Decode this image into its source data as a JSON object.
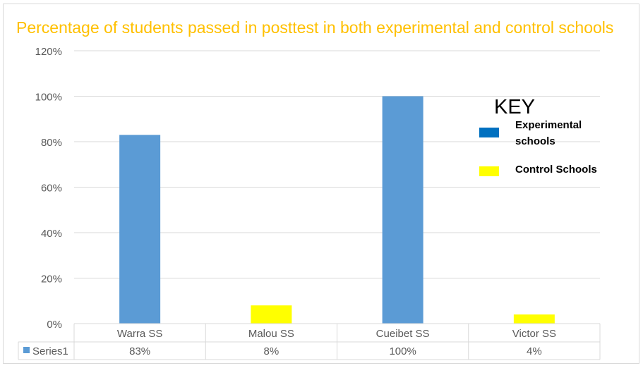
{
  "chart_data": {
    "type": "bar",
    "title": "Percentage of students passed in posttest in both experimental and control schools",
    "categories": [
      "Warra SS",
      "Malou SS",
      "Cueibet SS",
      "Victor SS"
    ],
    "values": [
      0.83,
      0.08,
      1.0,
      0.04
    ],
    "value_labels": [
      "83%",
      "8%",
      "100%",
      "4%"
    ],
    "bar_colors": [
      "#5b9bd5",
      "#ffff00",
      "#5b9bd5",
      "#ffff00"
    ],
    "series_name": "Series1",
    "series_marker_color": "#5b9bd5",
    "ylim": [
      0,
      1.2
    ],
    "yticks": [
      0,
      0.2,
      0.4,
      0.6,
      0.8,
      1.0,
      1.2
    ],
    "ytick_labels": [
      "0%",
      "20%",
      "40%",
      "60%",
      "80%",
      "100%",
      "120%"
    ],
    "grid": true,
    "data_table": true,
    "xlabel": "",
    "ylabel": ""
  },
  "key": {
    "title": "KEY",
    "items": [
      {
        "label": "Experimental schools",
        "color": "#0070c0"
      },
      {
        "label": "Control Schools",
        "color": "#ffff00"
      }
    ]
  },
  "colors": {
    "title": "#ffc000",
    "grid": "#d9d9d9",
    "axis_text": "#595959"
  }
}
